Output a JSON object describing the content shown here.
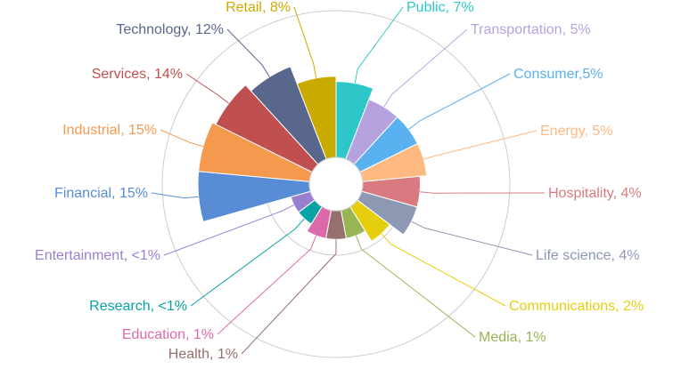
{
  "chart_data": {
    "type": "pie",
    "variant": "rose",
    "grid": "concentric circles",
    "legend": "none",
    "categories": [
      "Public",
      "Transportation",
      "Consumer",
      "Energy",
      "Hospitality",
      "Life science",
      "Communications",
      "Media",
      "Health",
      "Education",
      "Research",
      "Entertainment",
      "Financial",
      "Industrial",
      "Services",
      "Technology",
      "Retail"
    ],
    "values": [
      7,
      5,
      5,
      5,
      4,
      4,
      2,
      1,
      1,
      1,
      0.5,
      0.5,
      15,
      15,
      14,
      12,
      8
    ],
    "labels": [
      "Public, 7%",
      "Transportation, 5%",
      "Consumer,5%",
      "Energy, 5%",
      "Hospitality, 4%",
      "Life science, 4%",
      "Communications, 2%",
      "Media, 1%",
      "Health, 1%",
      "Education, 1%",
      "Research, <1%",
      "Entertainment, <1%",
      "Financial, 15%",
      "Industrial, 15%",
      "Services, 14%",
      "Technology, 12%",
      "Retail, 8%"
    ],
    "colors": [
      "#2ec7c9",
      "#b6a2de",
      "#5ab1ef",
      "#ffb980",
      "#d87a80",
      "#8d98b3",
      "#e5cf0d",
      "#97b552",
      "#95706d",
      "#dc69aa",
      "#07a2a4",
      "#9a7fd1",
      "#588dd5",
      "#f5994e",
      "#c05050",
      "#59678c",
      "#c9ab00"
    ]
  }
}
